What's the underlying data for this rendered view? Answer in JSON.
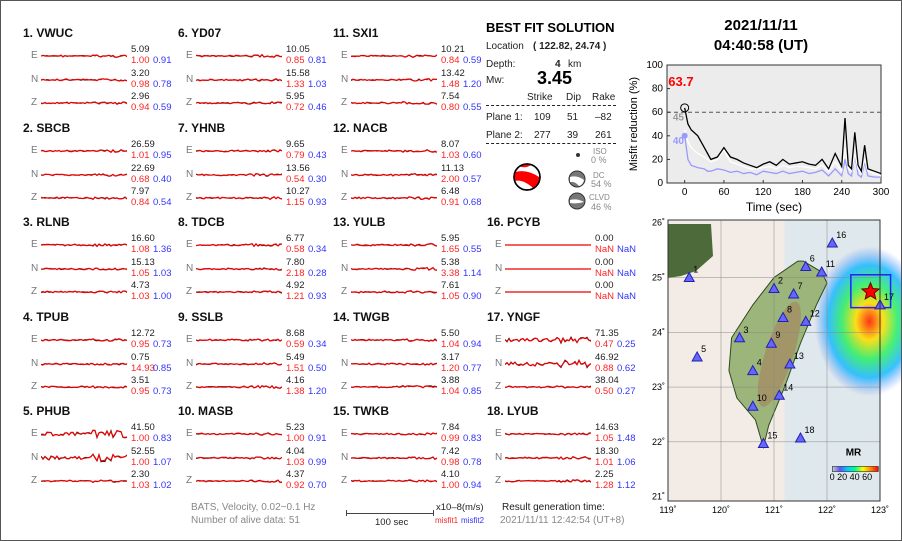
{
  "stations": [
    {
      "id": "1. VWUC",
      "comps": [
        {
          "c": "E",
          "amp": "5.09",
          "m1": "1.00",
          "m2": "0.91"
        },
        {
          "c": "N",
          "amp": "3.20",
          "m1": "0.98",
          "m2": "0.78"
        },
        {
          "c": "Z",
          "amp": "2.96",
          "m1": "0.94",
          "m2": "0.59"
        }
      ]
    },
    {
      "id": "2. SBCB",
      "comps": [
        {
          "c": "E",
          "amp": "26.59",
          "m1": "1.01",
          "m2": "0.95"
        },
        {
          "c": "N",
          "amp": "22.69",
          "m1": "0.68",
          "m2": "0.40"
        },
        {
          "c": "Z",
          "amp": "7.97",
          "m1": "0.84",
          "m2": "0.54"
        }
      ]
    },
    {
      "id": "3. RLNB",
      "comps": [
        {
          "c": "E",
          "amp": "16.60",
          "m1": "1.08",
          "m2": "1.36"
        },
        {
          "c": "N",
          "amp": "15.13",
          "m1": "1.05",
          "m2": "1.03"
        },
        {
          "c": "Z",
          "amp": "4.73",
          "m1": "1.03",
          "m2": "1.00"
        }
      ]
    },
    {
      "id": "4. TPUB",
      "comps": [
        {
          "c": "E",
          "amp": "12.72",
          "m1": "0.95",
          "m2": "0.73"
        },
        {
          "c": "N",
          "amp": "0.75",
          "m1": "14.93",
          "m2": "0.85"
        },
        {
          "c": "Z",
          "amp": "3.51",
          "m1": "0.95",
          "m2": "0.73"
        }
      ]
    },
    {
      "id": "5. PHUB",
      "comps": [
        {
          "c": "E",
          "amp": "41.50",
          "m1": "1.00",
          "m2": "0.83"
        },
        {
          "c": "N",
          "amp": "52.55",
          "m1": "1.00",
          "m2": "1.07"
        },
        {
          "c": "Z",
          "amp": "2.30",
          "m1": "1.03",
          "m2": "1.02"
        }
      ]
    },
    {
      "id": "6. YD07",
      "comps": [
        {
          "c": "E",
          "amp": "10.05",
          "m1": "0.85",
          "m2": "0.81"
        },
        {
          "c": "N",
          "amp": "15.58",
          "m1": "1.33",
          "m2": "1.03"
        },
        {
          "c": "Z",
          "amp": "5.95",
          "m1": "0.72",
          "m2": "0.46"
        }
      ]
    },
    {
      "id": "7. YHNB",
      "comps": [
        {
          "c": "E",
          "amp": "9.65",
          "m1": "0.79",
          "m2": "0.43"
        },
        {
          "c": "N",
          "amp": "13.56",
          "m1": "0.54",
          "m2": "0.30"
        },
        {
          "c": "Z",
          "amp": "10.27",
          "m1": "1.15",
          "m2": "0.93"
        }
      ]
    },
    {
      "id": "8. TDCB",
      "comps": [
        {
          "c": "E",
          "amp": "6.77",
          "m1": "0.58",
          "m2": "0.34"
        },
        {
          "c": "N",
          "amp": "7.80",
          "m1": "2.18",
          "m2": "0.28"
        },
        {
          "c": "Z",
          "amp": "4.92",
          "m1": "1.21",
          "m2": "0.93"
        }
      ]
    },
    {
      "id": "9. SSLB",
      "comps": [
        {
          "c": "E",
          "amp": "8.68",
          "m1": "0.59",
          "m2": "0.34"
        },
        {
          "c": "N",
          "amp": "5.49",
          "m1": "1.51",
          "m2": "0.50"
        },
        {
          "c": "Z",
          "amp": "4.16",
          "m1": "1.38",
          "m2": "1.20"
        }
      ]
    },
    {
      "id": "10. MASB",
      "comps": [
        {
          "c": "E",
          "amp": "5.23",
          "m1": "1.00",
          "m2": "0.91"
        },
        {
          "c": "N",
          "amp": "4.04",
          "m1": "1.03",
          "m2": "0.99"
        },
        {
          "c": "Z",
          "amp": "4.37",
          "m1": "0.92",
          "m2": "0.70"
        }
      ]
    },
    {
      "id": "11. SXI1",
      "comps": [
        {
          "c": "E",
          "amp": "10.21",
          "m1": "0.84",
          "m2": "0.59"
        },
        {
          "c": "N",
          "amp": "13.42",
          "m1": "1.48",
          "m2": "1.20"
        },
        {
          "c": "Z",
          "amp": "7.54",
          "m1": "0.80",
          "m2": "0.55"
        }
      ]
    },
    {
      "id": "12. NACB",
      "comps": [
        {
          "c": "E",
          "amp": "8.07",
          "m1": "1.03",
          "m2": "0.60"
        },
        {
          "c": "N",
          "amp": "11.13",
          "m1": "2.00",
          "m2": "0.57"
        },
        {
          "c": "Z",
          "amp": "6.48",
          "m1": "0.91",
          "m2": "0.68"
        }
      ]
    },
    {
      "id": "13. YULB",
      "comps": [
        {
          "c": "E",
          "amp": "5.95",
          "m1": "1.65",
          "m2": "0.55"
        },
        {
          "c": "N",
          "amp": "5.38",
          "m1": "3.38",
          "m2": "1.14"
        },
        {
          "c": "Z",
          "amp": "7.61",
          "m1": "1.05",
          "m2": "0.90"
        }
      ]
    },
    {
      "id": "14. TWGB",
      "comps": [
        {
          "c": "E",
          "amp": "5.50",
          "m1": "1.04",
          "m2": "0.94"
        },
        {
          "c": "N",
          "amp": "3.17",
          "m1": "1.20",
          "m2": "0.77"
        },
        {
          "c": "Z",
          "amp": "3.88",
          "m1": "1.04",
          "m2": "0.85"
        }
      ]
    },
    {
      "id": "15. TWKB",
      "comps": [
        {
          "c": "E",
          "amp": "7.84",
          "m1": "0.99",
          "m2": "0.83"
        },
        {
          "c": "N",
          "amp": "7.42",
          "m1": "0.98",
          "m2": "0.78"
        },
        {
          "c": "Z",
          "amp": "4.10",
          "m1": "1.00",
          "m2": "0.94"
        }
      ]
    },
    {
      "id": "16. PCYB",
      "comps": [
        {
          "c": "E",
          "amp": "0.00",
          "m1": "NaN",
          "m2": "NaN"
        },
        {
          "c": "N",
          "amp": "0.00",
          "m1": "NaN",
          "m2": "NaN"
        },
        {
          "c": "Z",
          "amp": "0.00",
          "m1": "NaN",
          "m2": "NaN"
        }
      ]
    },
    {
      "id": "17. YNGF",
      "comps": [
        {
          "c": "E",
          "amp": "71.35",
          "m1": "0.47",
          "m2": "0.25"
        },
        {
          "c": "N",
          "amp": "46.92",
          "m1": "0.88",
          "m2": "0.62"
        },
        {
          "c": "Z",
          "amp": "38.04",
          "m1": "0.50",
          "m2": "0.27"
        }
      ]
    },
    {
      "id": "18. LYUB",
      "comps": [
        {
          "c": "E",
          "amp": "14.63",
          "m1": "1.05",
          "m2": "1.48"
        },
        {
          "c": "N",
          "amp": "18.30",
          "m1": "1.01",
          "m2": "1.06"
        },
        {
          "c": "Z",
          "amp": "2.25",
          "m1": "1.28",
          "m2": "1.12"
        }
      ]
    }
  ],
  "solution": {
    "title": "BEST FIT SOLUTION",
    "location_label": "Location",
    "location": "( 122.82,  24.74 )",
    "depth_label": "Depth:",
    "depth": "4",
    "depth_unit": "km",
    "mw_label": "Mw:",
    "mw": "3.45",
    "headers": [
      "Strike",
      "Dip",
      "Rake"
    ],
    "planes": [
      {
        "label": "Plane 1:",
        "strike": "109",
        "dip": "51",
        "rake": "–82"
      },
      {
        "label": "Plane 2:",
        "strike": "277",
        "dip": "39",
        "rake": "261"
      }
    ],
    "iso_label": "ISO",
    "iso": "0 %",
    "dc_label": "DC",
    "dc": "54 %",
    "clvd_label": "CLVD",
    "clvd": "46 %"
  },
  "header": {
    "date": "2021/11/11",
    "time": "04:40:58  (UT)"
  },
  "footer": {
    "filter": "BATS, Velocity, 0.02~0.1 Hz",
    "alive": "Number of alive data: 51",
    "scale": "100 sec",
    "unit": "x10–8(m/s)",
    "misfit1": "misfit1",
    "misfit2": "misfit2",
    "gen_label": "Result generation time:",
    "gen_time": "2021/11/11 12:42:54 (UT+8)"
  },
  "chart_data": {
    "type": "line",
    "xlabel": "Time (sec)",
    "ylabel": "Misfit reduction (%)",
    "xlim": [
      -27,
      300
    ],
    "ylim": [
      0,
      100
    ],
    "xticks": [
      "0",
      "60",
      "120",
      "180",
      "240",
      "300"
    ],
    "yticks": [
      "0",
      "20",
      "40",
      "60",
      "80",
      "100"
    ],
    "threshold": 60,
    "annotations": {
      "best": "63.7",
      "gray": "45",
      "blue": "40"
    },
    "x": [
      0,
      5,
      10,
      20,
      30,
      35,
      40,
      50,
      60,
      70,
      80,
      90,
      100,
      110,
      120,
      130,
      140,
      150,
      160,
      170,
      180,
      190,
      200,
      210,
      220,
      230,
      240,
      245,
      250,
      255,
      260,
      265,
      270,
      275,
      280,
      290,
      300
    ],
    "series": [
      {
        "color": "#000000",
        "values": [
          63.7,
          50,
          45,
          40,
          30,
          25,
          20,
          22,
          30,
          22,
          20,
          17,
          15,
          13,
          16,
          18,
          15,
          20,
          16,
          17,
          18,
          16,
          15,
          20,
          12,
          25,
          14,
          55,
          15,
          12,
          43,
          15,
          10,
          32,
          12,
          10,
          8
        ]
      },
      {
        "color": "#ffffff",
        "values": [
          45,
          35,
          30,
          25,
          22,
          20,
          18,
          20,
          28,
          18,
          16,
          14,
          12,
          12,
          13,
          14,
          12,
          15,
          13,
          14,
          14,
          13,
          12,
          15,
          10,
          18,
          10,
          30,
          12,
          10,
          25,
          12,
          8,
          20,
          10,
          8,
          6
        ]
      },
      {
        "color": "#9999ff",
        "values": [
          40,
          20,
          15,
          13,
          12,
          10,
          10,
          12,
          11,
          9,
          10,
          8,
          9,
          7,
          10,
          9,
          8,
          10,
          8,
          9,
          10,
          8,
          9,
          11,
          6,
          12,
          6,
          20,
          8,
          6,
          25,
          7,
          5,
          18,
          6,
          5,
          5
        ]
      }
    ]
  },
  "map": {
    "lon_ticks": [
      "119˚",
      "120˚",
      "121˚",
      "122˚",
      "123˚"
    ],
    "lat_ticks": [
      "21˚",
      "22˚",
      "23˚",
      "24˚",
      "25˚",
      "26˚"
    ],
    "legend_title": "MR",
    "legend_ticks": "0 20 40 60",
    "epicenter": [
      122.82,
      24.74
    ],
    "stations": [
      {
        "n": "1",
        "lon": 119.4,
        "lat": 25.0
      },
      {
        "n": "2",
        "lon": 121.0,
        "lat": 24.8
      },
      {
        "n": "3",
        "lon": 120.35,
        "lat": 23.9
      },
      {
        "n": "4",
        "lon": 120.6,
        "lat": 23.3
      },
      {
        "n": "5",
        "lon": 119.55,
        "lat": 23.55
      },
      {
        "n": "6",
        "lon": 121.6,
        "lat": 25.2
      },
      {
        "n": "7",
        "lon": 121.37,
        "lat": 24.7
      },
      {
        "n": "8",
        "lon": 121.17,
        "lat": 24.27
      },
      {
        "n": "9",
        "lon": 120.95,
        "lat": 23.8
      },
      {
        "n": "10",
        "lon": 120.6,
        "lat": 22.65
      },
      {
        "n": "11",
        "lon": 121.9,
        "lat": 25.1
      },
      {
        "n": "12",
        "lon": 121.6,
        "lat": 24.2
      },
      {
        "n": "13",
        "lon": 121.3,
        "lat": 23.42
      },
      {
        "n": "14",
        "lon": 121.1,
        "lat": 22.85
      },
      {
        "n": "15",
        "lon": 120.8,
        "lat": 21.97
      },
      {
        "n": "16",
        "lon": 122.1,
        "lat": 25.63
      },
      {
        "n": "17",
        "lon": 123.0,
        "lat": 24.5
      },
      {
        "n": "18",
        "lon": 121.5,
        "lat": 22.07
      }
    ]
  }
}
